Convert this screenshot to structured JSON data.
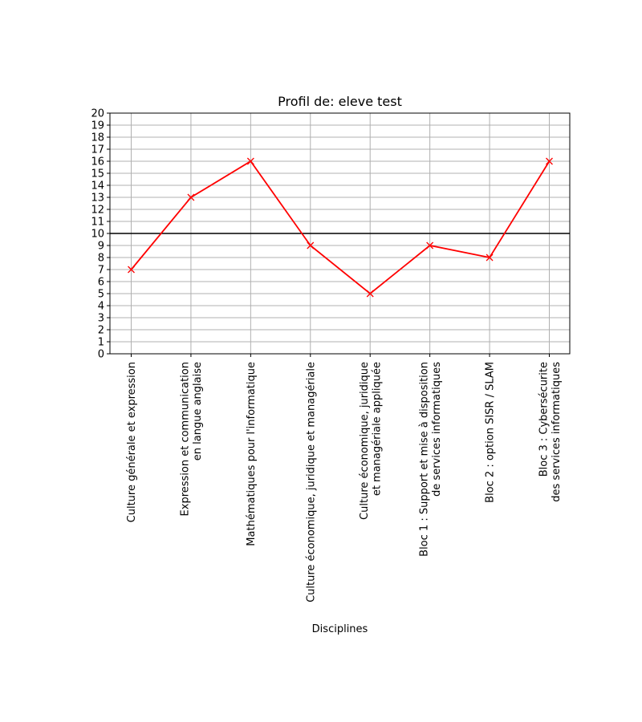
{
  "chart_data": {
    "type": "line",
    "title": "Profil de: eleve test",
    "xlabel": "Disciplines",
    "ylabel": "",
    "ylim": [
      0,
      20
    ],
    "yticks": [
      0,
      1,
      2,
      3,
      4,
      5,
      6,
      7,
      8,
      9,
      10,
      11,
      12,
      13,
      14,
      15,
      16,
      17,
      18,
      19,
      20
    ],
    "grid": true,
    "reference_line": {
      "y": 10,
      "color": "#000000"
    },
    "categories": [
      [
        "Culture générale et expression"
      ],
      [
        "Expression et communication",
        "en langue anglaise"
      ],
      [
        "Mathématiques pour l'informatique"
      ],
      [
        "Culture économique, juridique et managériale"
      ],
      [
        "Culture économique, juridique",
        "et managériale appliquée"
      ],
      [
        "Bloc 1 : Support et mise à disposition",
        "de services informatiques"
      ],
      [
        "Bloc 2 : option SISR / SLAM"
      ],
      [
        "Bloc 3 : Cybersécurite",
        "des services informatiques"
      ]
    ],
    "series": [
      {
        "values": [
          7,
          13,
          16,
          9,
          5,
          9,
          8,
          16
        ],
        "color": "#ff0000",
        "marker": "x"
      }
    ]
  }
}
